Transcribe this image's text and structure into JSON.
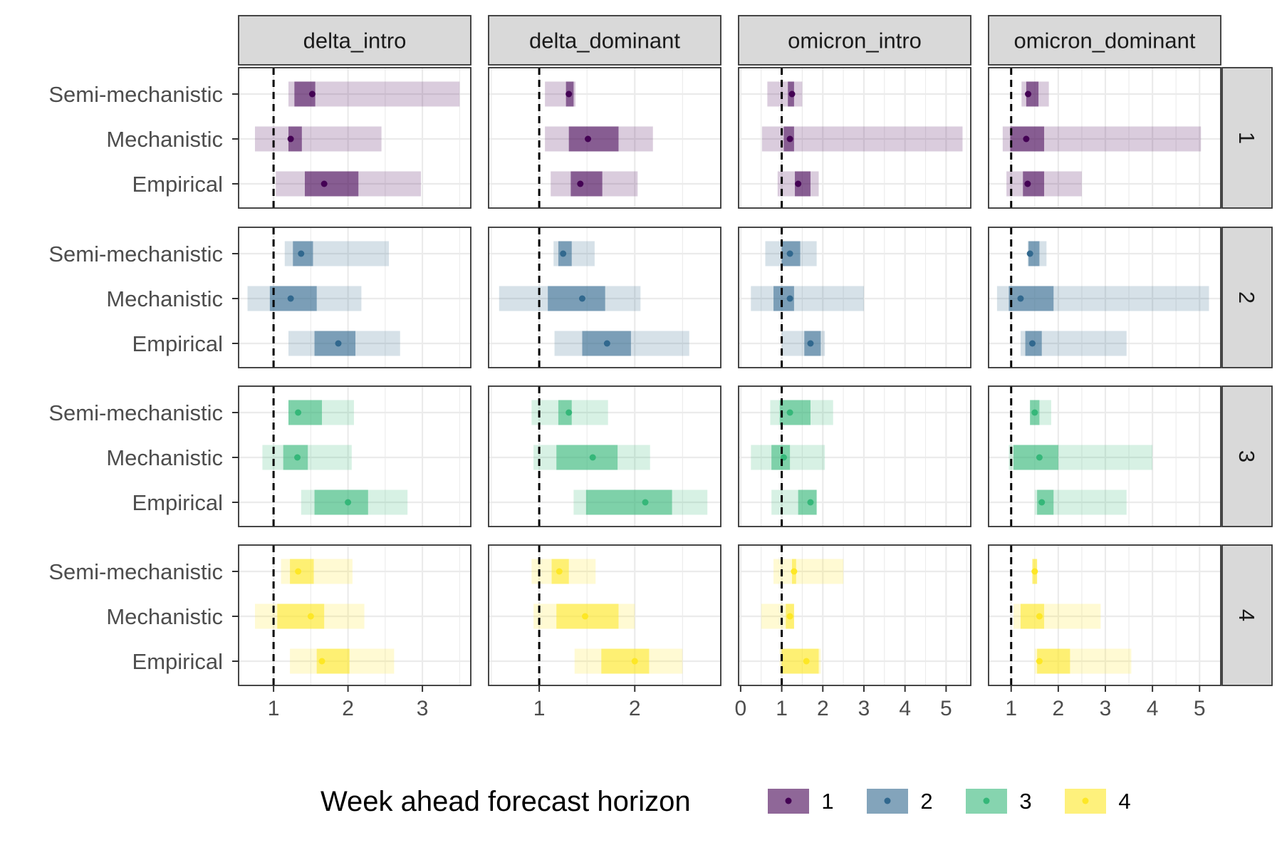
{
  "chart_data": {
    "type": "forest-interval",
    "column_facets": [
      "delta_intro",
      "delta_dominant",
      "omicron_intro",
      "omicron_dominant"
    ],
    "row_facets": [
      "1",
      "2",
      "3",
      "4"
    ],
    "categories": [
      "Semi-mechanistic",
      "Mechanistic",
      "Empirical"
    ],
    "reference_line": 1,
    "x_axes": [
      {
        "range": [
          0.53,
          3.65
        ],
        "ticks": [
          1,
          2,
          3
        ]
      },
      {
        "range": [
          0.47,
          2.9
        ],
        "ticks": [
          1,
          2
        ]
      },
      {
        "range": [
          -0.05,
          5.6
        ],
        "ticks": [
          0,
          1,
          2,
          3,
          4,
          5
        ]
      },
      {
        "range": [
          0.52,
          5.45
        ],
        "ticks": [
          1,
          2,
          3,
          4,
          5
        ]
      }
    ],
    "colors": {
      "1": "#440154",
      "2": "#31688e",
      "3": "#35b779",
      "4": "#fde725"
    },
    "legend": {
      "title": "Week ahead forecast horizon",
      "position": "bottom",
      "items": [
        {
          "label": "1",
          "horizon": "1"
        },
        {
          "label": "2",
          "horizon": "2"
        },
        {
          "label": "3",
          "horizon": "3"
        },
        {
          "label": "4",
          "horizon": "4"
        }
      ]
    },
    "series": [
      {
        "row": "1",
        "panels": [
          [
            [
              1.2,
              1.28,
              1.52,
              1.56,
              3.5
            ],
            [
              0.75,
              1.2,
              1.23,
              1.38,
              2.45
            ],
            [
              1.03,
              1.42,
              1.68,
              2.14,
              2.98
            ]
          ],
          [
            [
              1.06,
              1.28,
              1.31,
              1.36,
              1.38
            ],
            [
              1.06,
              1.31,
              1.51,
              1.83,
              2.19
            ],
            [
              1.12,
              1.33,
              1.43,
              1.66,
              2.03
            ]
          ],
          [
            [
              0.65,
              1.15,
              1.25,
              1.3,
              1.5
            ],
            [
              0.52,
              1.05,
              1.2,
              1.3,
              5.4
            ],
            [
              0.9,
              1.32,
              1.4,
              1.7,
              1.9
            ]
          ],
          [
            [
              1.22,
              1.32,
              1.36,
              1.58,
              1.8
            ],
            [
              0.82,
              0.98,
              1.32,
              1.7,
              5.03
            ],
            [
              0.9,
              1.25,
              1.35,
              1.7,
              2.5
            ]
          ]
        ]
      },
      {
        "row": "2",
        "panels": [
          [
            [
              1.15,
              1.26,
              1.37,
              1.53,
              2.55
            ],
            [
              0.65,
              0.95,
              1.23,
              1.58,
              2.18
            ],
            [
              1.2,
              1.55,
              1.87,
              2.1,
              2.7
            ]
          ],
          [
            [
              1.15,
              1.2,
              1.25,
              1.34,
              1.58
            ],
            [
              0.58,
              1.09,
              1.45,
              1.69,
              2.06
            ],
            [
              1.16,
              1.45,
              1.71,
              1.96,
              2.57
            ]
          ],
          [
            [
              0.6,
              1.0,
              1.2,
              1.45,
              1.85
            ],
            [
              0.25,
              0.8,
              1.2,
              1.3,
              3.0
            ],
            [
              1.0,
              1.55,
              1.7,
              1.95,
              2.05
            ]
          ],
          [
            [
              1.35,
              1.37,
              1.4,
              1.6,
              1.75
            ],
            [
              0.7,
              0.95,
              1.2,
              1.9,
              5.2
            ],
            [
              1.2,
              1.3,
              1.45,
              1.65,
              3.45
            ]
          ]
        ]
      },
      {
        "row": "3",
        "panels": [
          [
            [
              1.2,
              1.2,
              1.33,
              1.65,
              2.08
            ],
            [
              0.85,
              1.13,
              1.32,
              1.46,
              2.05
            ],
            [
              1.37,
              1.55,
              2.0,
              2.27,
              2.8
            ]
          ],
          [
            [
              0.92,
              1.2,
              1.31,
              1.34,
              1.72
            ],
            [
              0.94,
              1.18,
              1.56,
              1.82,
              2.16
            ],
            [
              1.36,
              1.49,
              2.11,
              2.39,
              2.76
            ]
          ],
          [
            [
              0.72,
              0.95,
              1.2,
              1.7,
              2.25
            ],
            [
              0.25,
              0.75,
              1.05,
              1.2,
              2.05
            ],
            [
              0.75,
              1.4,
              1.7,
              1.85,
              1.85
            ]
          ],
          [
            [
              1.4,
              1.4,
              1.5,
              1.6,
              1.85
            ],
            [
              0.95,
              1.05,
              1.6,
              2.0,
              4.0
            ],
            [
              1.5,
              1.55,
              1.65,
              1.9,
              3.45
            ]
          ]
        ]
      },
      {
        "row": "4",
        "panels": [
          [
            [
              1.1,
              1.22,
              1.33,
              1.54,
              2.06
            ],
            [
              0.75,
              1.05,
              1.5,
              1.68,
              2.22
            ],
            [
              1.22,
              1.58,
              1.65,
              2.02,
              2.62
            ]
          ],
          [
            [
              0.92,
              1.13,
              1.21,
              1.31,
              1.59
            ],
            [
              0.94,
              1.18,
              1.48,
              1.83,
              2.0
            ],
            [
              1.37,
              1.65,
              2.0,
              2.15,
              2.5
            ]
          ],
          [
            [
              0.8,
              1.25,
              1.3,
              1.35,
              2.5
            ],
            [
              0.5,
              1.1,
              1.2,
              1.3,
              1.3
            ],
            [
              0.95,
              1.0,
              1.6,
              1.9,
              1.95
            ]
          ],
          [
            [
              1.45,
              1.45,
              1.5,
              1.55,
              1.55
            ],
            [
              1.05,
              1.2,
              1.6,
              1.7,
              2.9
            ],
            [
              1.5,
              1.55,
              1.6,
              2.25,
              3.55
            ]
          ]
        ]
      }
    ]
  }
}
